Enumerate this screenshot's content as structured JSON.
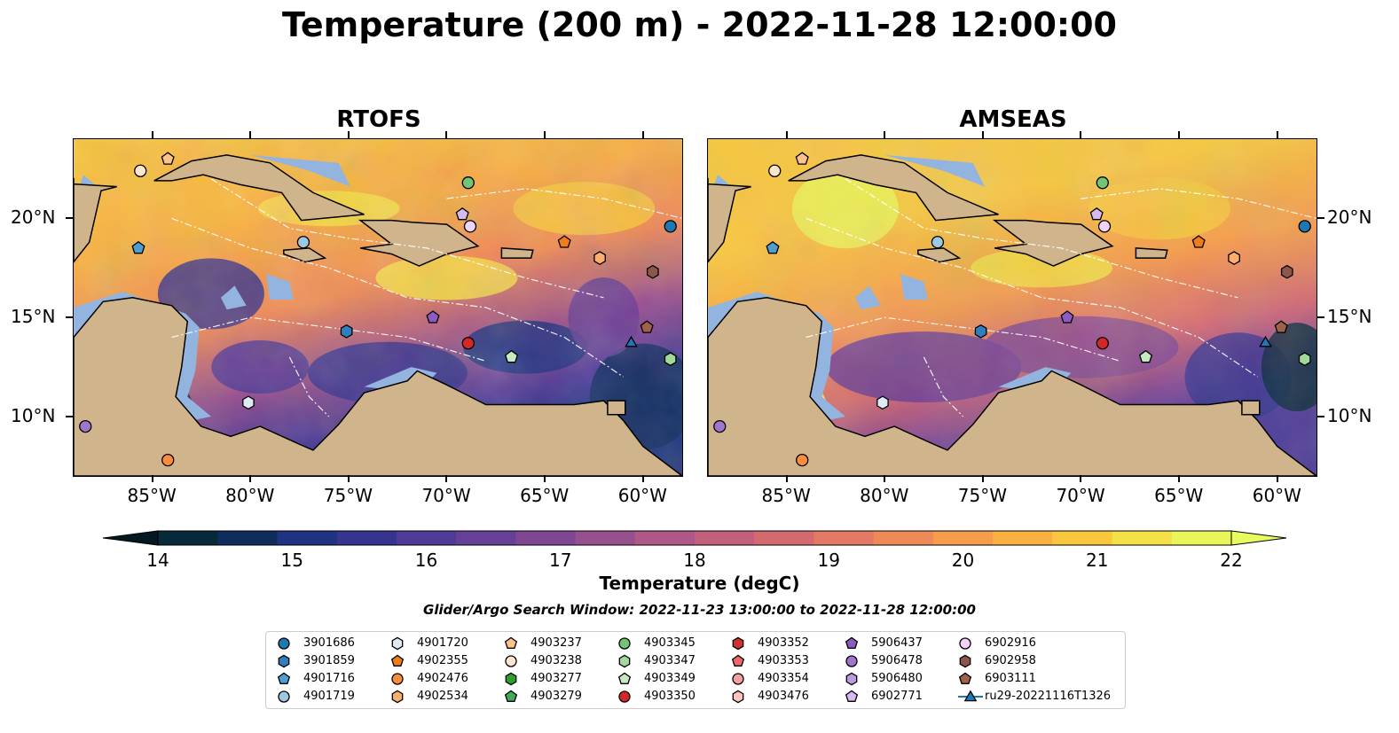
{
  "title": "Temperature (200 m) - 2022-11-28 12:00:00",
  "panels": [
    {
      "title": "RTOFS"
    },
    {
      "title": "AMSEAS"
    }
  ],
  "lon_ticks": [
    "85°W",
    "80°W",
    "75°W",
    "70°W",
    "65°W",
    "60°W"
  ],
  "lat_ticks": [
    "20°N",
    "15°N",
    "10°N"
  ],
  "extent": {
    "lon": [
      -89,
      -58
    ],
    "lat": [
      7,
      24
    ]
  },
  "colorbar": {
    "label": "Temperature (degC)",
    "ticks": [
      "14",
      "15",
      "16",
      "17",
      "18",
      "19",
      "20",
      "21",
      "22"
    ],
    "range": [
      14,
      22
    ],
    "colors": [
      "#062a3a",
      "#0f2d5c",
      "#1f3380",
      "#37348f",
      "#4e3b96",
      "#663f97",
      "#7f4793",
      "#97508e",
      "#ad5887",
      "#c0607c",
      "#d36a70",
      "#e37964",
      "#ee8a57",
      "#f59d4b",
      "#f8b140",
      "#f8c73d",
      "#f4e047",
      "#eaf55a"
    ],
    "under_color": "#031820",
    "over_color": "#e8fb5e"
  },
  "search_window": "Glider/Argo Search Window: 2022-11-23 13:00:00 to 2022-11-28 12:00:00",
  "colors": {
    "land": "#d0b48c",
    "shelf": "#94b4e0"
  },
  "legend": [
    {
      "label": "3901686",
      "color": "#1f77b4",
      "marker": "circle"
    },
    {
      "label": "3901859",
      "color": "#2f7fbf",
      "marker": "hexagon"
    },
    {
      "label": "4901716",
      "color": "#4f9ed0",
      "marker": "pentagon"
    },
    {
      "label": "4901719",
      "color": "#9ecae1",
      "marker": "circle"
    },
    {
      "label": "4901720",
      "color": "#deebf7",
      "marker": "hexagon"
    },
    {
      "label": "4902355",
      "color": "#f07d1c",
      "marker": "pentagon"
    },
    {
      "label": "4902476",
      "color": "#fd8d3c",
      "marker": "circle"
    },
    {
      "label": "4902534",
      "color": "#fdae6b",
      "marker": "hexagon"
    },
    {
      "label": "4903237",
      "color": "#fdc28c",
      "marker": "pentagon"
    },
    {
      "label": "4903238",
      "color": "#fee6ce",
      "marker": "circle"
    },
    {
      "label": "4903277",
      "color": "#2ca02c",
      "marker": "hexagon"
    },
    {
      "label": "4903279",
      "color": "#41ab5d",
      "marker": "pentagon"
    },
    {
      "label": "4903345",
      "color": "#74c476",
      "marker": "circle"
    },
    {
      "label": "4903347",
      "color": "#a1d99b",
      "marker": "hexagon"
    },
    {
      "label": "4903349",
      "color": "#c7e9c0",
      "marker": "pentagon"
    },
    {
      "label": "4903350",
      "color": "#d62728",
      "marker": "circle"
    },
    {
      "label": "4903352",
      "color": "#d03030",
      "marker": "hexagon"
    },
    {
      "label": "4903353",
      "color": "#ee6a6a",
      "marker": "pentagon"
    },
    {
      "label": "4903354",
      "color": "#f4a0a0",
      "marker": "circle"
    },
    {
      "label": "4903476",
      "color": "#fcc5c0",
      "marker": "hexagon"
    },
    {
      "label": "5906437",
      "color": "#8a5cc4",
      "marker": "pentagon"
    },
    {
      "label": "5906478",
      "color": "#9e76cc",
      "marker": "circle"
    },
    {
      "label": "5906480",
      "color": "#bc9be0",
      "marker": "hexagon"
    },
    {
      "label": "6902771",
      "color": "#d6b9f0",
      "marker": "pentagon"
    },
    {
      "label": "6902916",
      "color": "#efd4f7",
      "marker": "circle"
    },
    {
      "label": "6902958",
      "color": "#8c564b",
      "marker": "hexagon"
    },
    {
      "label": "6903111",
      "color": "#a0614a",
      "marker": "pentagon"
    },
    {
      "label": "ru29-20221116T1326",
      "color": "#1f77b4",
      "marker": "triangle-line"
    }
  ],
  "platforms": [
    {
      "id": "4903238",
      "lon": -85.6,
      "lat": 22.4,
      "color": "#fee6ce",
      "marker": "circle"
    },
    {
      "id": "4903237",
      "lon": -84.2,
      "lat": 23.0,
      "color": "#fdc28c",
      "marker": "pentagon"
    },
    {
      "id": "4901716",
      "lon": -85.7,
      "lat": 18.5,
      "color": "#4f9ed0",
      "marker": "pentagon"
    },
    {
      "id": "4901719",
      "lon": -77.3,
      "lat": 18.8,
      "color": "#9ecae1",
      "marker": "circle"
    },
    {
      "id": "4903345",
      "lon": -68.9,
      "lat": 21.8,
      "color": "#74c476",
      "marker": "circle"
    },
    {
      "id": "6902771",
      "lon": -69.2,
      "lat": 20.2,
      "color": "#d6b9f0",
      "marker": "pentagon"
    },
    {
      "id": "6902916",
      "lon": -68.8,
      "lat": 19.6,
      "color": "#efd4f7",
      "marker": "circle"
    },
    {
      "id": "3901686",
      "lon": -58.6,
      "lat": 19.6,
      "color": "#1f77b4",
      "marker": "circle"
    },
    {
      "id": "4902355",
      "lon": -64.0,
      "lat": 18.8,
      "color": "#f07d1c",
      "marker": "pentagon"
    },
    {
      "id": "4902534",
      "lon": -62.2,
      "lat": 18.0,
      "color": "#fdae6b",
      "marker": "hexagon"
    },
    {
      "id": "6902958",
      "lon": -59.5,
      "lat": 17.3,
      "color": "#8c564b",
      "marker": "hexagon"
    },
    {
      "id": "3901859",
      "lon": -75.1,
      "lat": 14.3,
      "color": "#2f7fbf",
      "marker": "hexagon"
    },
    {
      "id": "5906437",
      "lon": -70.7,
      "lat": 15.0,
      "color": "#8a5cc4",
      "marker": "pentagon"
    },
    {
      "id": "4903350",
      "lon": -68.9,
      "lat": 13.7,
      "color": "#d62728",
      "marker": "circle"
    },
    {
      "id": "4903349",
      "lon": -66.7,
      "lat": 13.0,
      "color": "#c7e9c0",
      "marker": "pentagon"
    },
    {
      "id": "4903347",
      "lon": -58.6,
      "lat": 12.9,
      "color": "#a1d99b",
      "marker": "hexagon"
    },
    {
      "id": "4901720",
      "lon": -80.1,
      "lat": 10.7,
      "color": "#deebf7",
      "marker": "hexagon"
    },
    {
      "id": "5906478",
      "lon": -88.4,
      "lat": 9.5,
      "color": "#9e76cc",
      "marker": "circle"
    },
    {
      "id": "4902476",
      "lon": -84.2,
      "lat": 7.8,
      "color": "#fd8d3c",
      "marker": "circle"
    },
    {
      "id": "6903111",
      "lon": -59.8,
      "lat": 14.5,
      "color": "#a0614a",
      "marker": "pentagon"
    },
    {
      "id": "ru29-20221116T1326",
      "lon": -60.6,
      "lat": 13.7,
      "color": "#1f77b4",
      "marker": "triangle"
    }
  ]
}
